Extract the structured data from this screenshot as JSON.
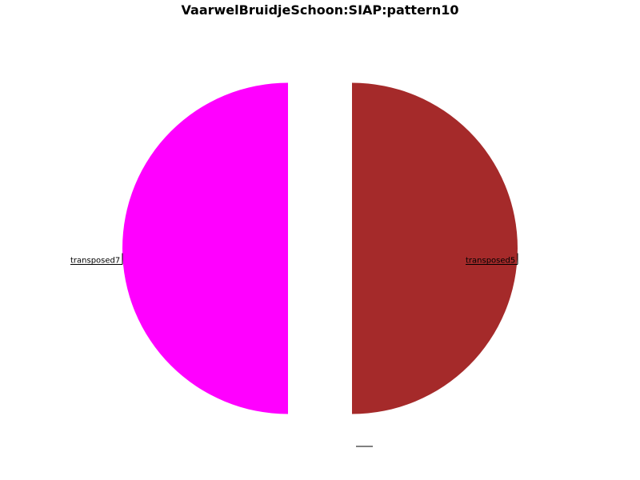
{
  "chart_data": {
    "type": "pie",
    "title": "VaarwelBruidjeSchoon:SIAP:pattern10",
    "slices": [
      {
        "label": "transposed5",
        "value": 50,
        "color": "#a52a2a"
      },
      {
        "label": "",
        "value": 0,
        "color": "#808080"
      },
      {
        "label": "transposed7",
        "value": 50,
        "color": "#ff00ff"
      }
    ],
    "legend": false
  }
}
